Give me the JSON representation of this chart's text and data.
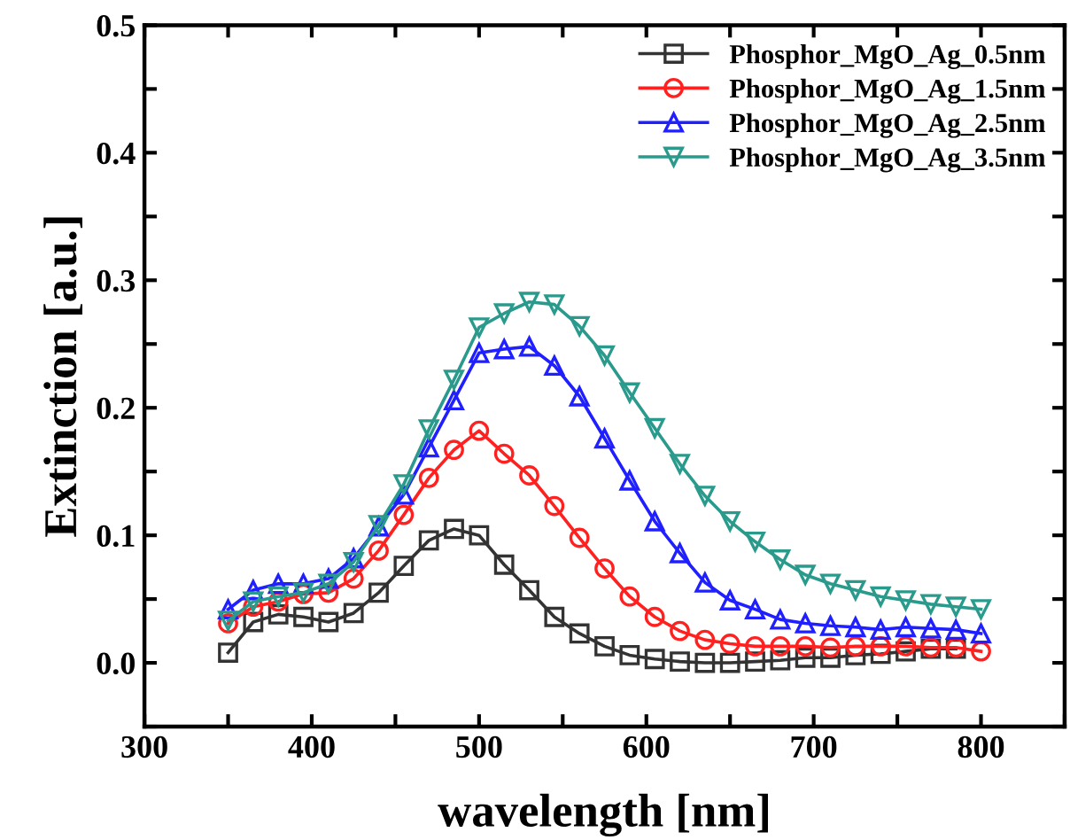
{
  "chart_data": {
    "type": "line",
    "xlabel": "wavelength [nm]",
    "ylabel": "Extinction [a.u.]",
    "x": [
      350,
      365,
      380,
      395,
      410,
      425,
      440,
      455,
      470,
      485,
      500,
      515,
      530,
      545,
      560,
      575,
      590,
      605,
      620,
      635,
      650,
      665,
      680,
      695,
      710,
      725,
      740,
      755,
      770,
      785,
      800
    ],
    "series": [
      {
        "name": "Phosphor_MgO_Ag_0.5nm",
        "color": "#333333",
        "marker": "square",
        "values": [
          0.008,
          0.032,
          0.038,
          0.036,
          0.032,
          0.039,
          0.055,
          0.076,
          0.096,
          0.105,
          0.1,
          0.077,
          0.057,
          0.036,
          0.023,
          0.013,
          0.006,
          0.003,
          0.001,
          0.0,
          0.0,
          0.001,
          0.002,
          0.004,
          0.004,
          0.006,
          0.007,
          0.009,
          0.011,
          0.011,
          null
        ]
      },
      {
        "name": "Phosphor_MgO_Ag_1.5nm",
        "color": "#ff2020",
        "marker": "circle",
        "values": [
          0.031,
          0.044,
          0.048,
          0.054,
          0.055,
          0.066,
          0.088,
          0.116,
          0.145,
          0.167,
          0.182,
          0.164,
          0.147,
          0.123,
          0.098,
          0.074,
          0.052,
          0.036,
          0.025,
          0.018,
          0.015,
          0.013,
          0.013,
          0.013,
          0.012,
          0.013,
          0.013,
          0.013,
          0.012,
          0.012,
          0.009
        ]
      },
      {
        "name": "Phosphor_MgO_Ag_2.5nm",
        "color": "#1f1fff",
        "marker": "triangle",
        "values": [
          0.042,
          0.057,
          0.062,
          0.062,
          0.066,
          0.082,
          0.107,
          0.132,
          0.169,
          0.206,
          0.243,
          0.246,
          0.248,
          0.233,
          0.209,
          0.176,
          0.143,
          0.111,
          0.086,
          0.063,
          0.049,
          0.042,
          0.034,
          0.031,
          0.029,
          0.028,
          0.026,
          0.028,
          0.027,
          0.026,
          0.023
        ]
      },
      {
        "name": "Phosphor_MgO_Ag_3.5nm",
        "color": "#2a9a8c",
        "marker": "triangle_down",
        "values": [
          0.033,
          0.048,
          0.052,
          0.055,
          0.062,
          0.079,
          0.108,
          0.14,
          0.183,
          0.222,
          0.263,
          0.274,
          0.283,
          0.281,
          0.264,
          0.241,
          0.212,
          0.184,
          0.156,
          0.131,
          0.111,
          0.095,
          0.081,
          0.069,
          0.062,
          0.057,
          0.052,
          0.049,
          0.046,
          0.044,
          0.042
        ]
      }
    ],
    "xlim": [
      300,
      850
    ],
    "xticks": [
      300,
      {
        "value": 350,
        "label": null
      },
      400,
      {
        "value": 450,
        "label": null
      },
      500,
      {
        "value": 550,
        "label": null
      },
      600,
      {
        "value": 650,
        "label": null
      },
      700,
      {
        "value": 750,
        "label": null
      },
      800,
      {
        "value": 850,
        "label": null
      }
    ],
    "ylim": [
      -0.05,
      0.5
    ],
    "yticks": [
      {
        "value": -0.05,
        "label": null
      },
      "0.0",
      {
        "value": 0.05,
        "label": null
      },
      0.1,
      {
        "value": 0.15,
        "label": null
      },
      0.2,
      {
        "value": 0.25,
        "label": null
      },
      0.3,
      {
        "value": 0.35,
        "label": null
      },
      0.4,
      {
        "value": 0.45,
        "label": null
      },
      0.5
    ],
    "grid": false,
    "legend": "top right",
    "line_style": "solid"
  }
}
